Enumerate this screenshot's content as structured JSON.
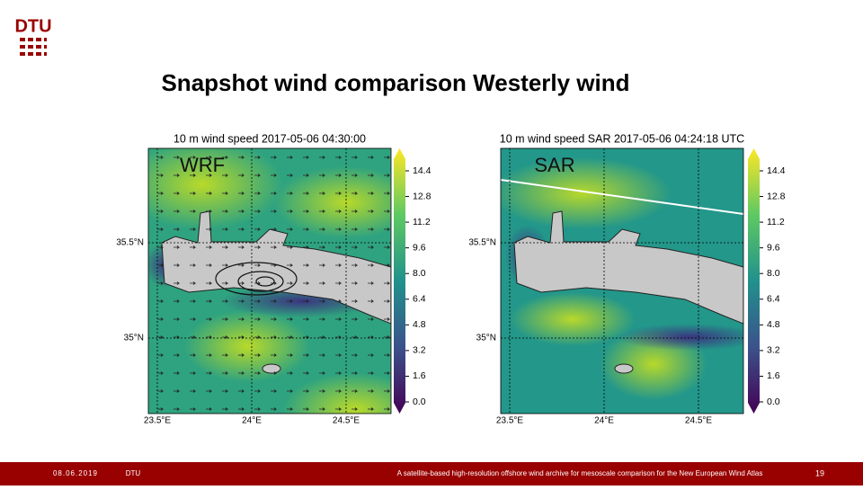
{
  "header": {
    "logo": "DTU",
    "title": "Snapshot wind comparison Westerly wind"
  },
  "panels": [
    {
      "title": "10 m wind speed 2017-05-06 04:30:00",
      "label": "WRF",
      "lat_labels": [
        "35.5°N",
        "35°N"
      ],
      "lon_labels": [
        "23.5°E",
        "24°E",
        "24.5°E"
      ],
      "colorbar_labels": [
        "14.4",
        "12.8",
        "11.2",
        "9.6",
        "8.0",
        "6.4",
        "4.8",
        "3.2",
        "1.6",
        "0.0"
      ]
    },
    {
      "title": "10 m wind speed SAR 2017-05-06 04:24:18 UTC",
      "label": "SAR",
      "lat_labels": [
        "35.5°N",
        "35°N"
      ],
      "lon_labels": [
        "23.5°E",
        "24°E",
        "24.5°E"
      ],
      "colorbar_labels": [
        "14.4",
        "12.8",
        "11.2",
        "9.6",
        "8.0",
        "6.4",
        "4.8",
        "3.2",
        "1.6",
        "0.0"
      ]
    }
  ],
  "footer": {
    "date": "08.06.2019",
    "org": "DTU",
    "text": "A satellite-based high-resolution offshore wind archive for mesoscale comparison for the New European Wind Atlas",
    "page": "19"
  }
}
